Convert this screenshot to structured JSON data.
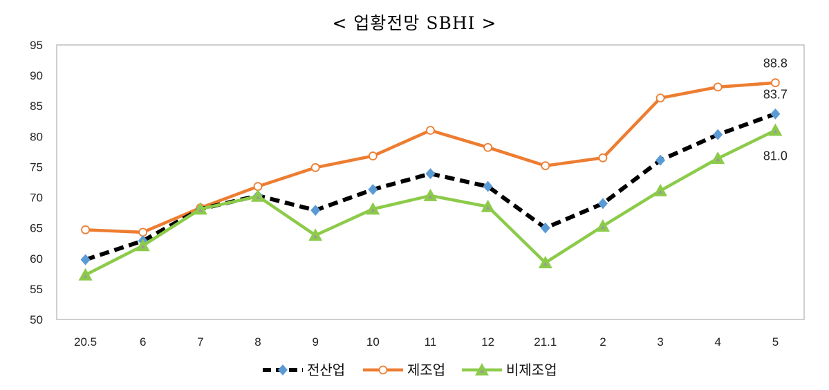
{
  "chart_data": {
    "type": "line",
    "title": "< 업황전망 SBHI >",
    "categories": [
      "20.5",
      "6",
      "7",
      "8",
      "9",
      "10",
      "11",
      "12",
      "21.1",
      "2",
      "3",
      "4",
      "5"
    ],
    "ylim": [
      50,
      95
    ],
    "yticks": [
      50,
      55,
      60,
      65,
      70,
      75,
      80,
      85,
      90,
      95
    ],
    "grid": false,
    "legend": "bottom",
    "series": [
      {
        "name": "전산업",
        "color": "#000000",
        "marker_color": "#5B9BD5",
        "style": "dashed",
        "marker": "diamond",
        "values": [
          59.8,
          62.9,
          68.1,
          70.3,
          67.9,
          71.3,
          73.9,
          71.8,
          65.0,
          69.0,
          76.1,
          80.3,
          83.7
        ],
        "last_label": "83.7"
      },
      {
        "name": "제조업",
        "color": "#ED7D31",
        "style": "solid",
        "marker": "circle-open",
        "values": [
          64.7,
          64.3,
          68.3,
          71.8,
          74.9,
          76.8,
          81.0,
          78.2,
          75.2,
          76.5,
          86.3,
          88.1,
          88.8
        ],
        "last_label": "88.8"
      },
      {
        "name": "비제조업",
        "color": "#8CCB4A",
        "style": "solid",
        "marker": "triangle",
        "values": [
          57.3,
          62.1,
          68.1,
          70.2,
          63.8,
          68.1,
          70.3,
          68.5,
          59.3,
          65.3,
          71.1,
          76.4,
          81.0
        ],
        "last_label": "81.0"
      }
    ]
  }
}
